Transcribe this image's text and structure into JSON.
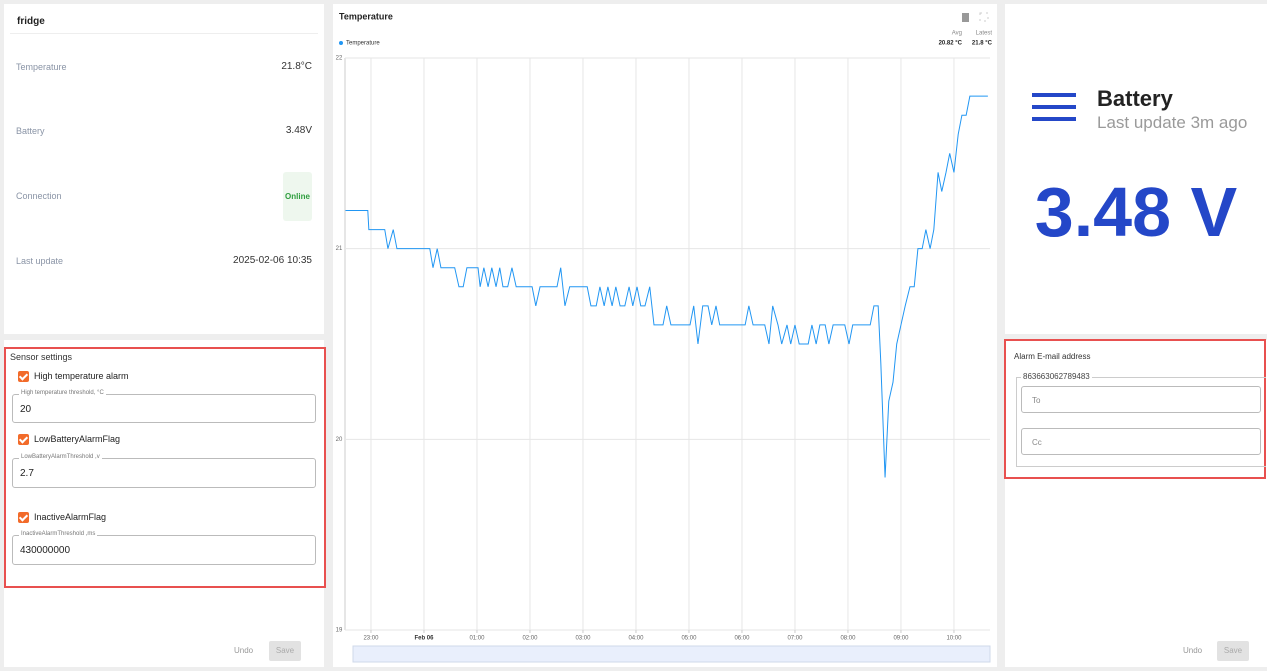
{
  "device_card": {
    "title": "fridge",
    "rows": [
      {
        "label": "Temperature",
        "value": "21.8°C"
      },
      {
        "label": "Battery",
        "value": "3.48V"
      },
      {
        "label": "Connection",
        "value": "Online"
      },
      {
        "label": "Last update",
        "value": "2025-02-06 10:35"
      }
    ]
  },
  "sensor_settings": {
    "title": "Sensor settings",
    "items": [
      {
        "checkbox": "High temperature alarm",
        "field_label": "High temperature threshold, °C",
        "field_value": "20"
      },
      {
        "checkbox": "LowBatteryAlarmFlag",
        "field_label": "LowBatteryAlarmThreshold ,v",
        "field_value": "2.7"
      },
      {
        "checkbox": "InactiveAlarmFlag",
        "field_label": "InactiveAlarmThreshold ,ms",
        "field_value": "430000000"
      }
    ]
  },
  "left_actions": {
    "undo": "Undo",
    "save": "Save"
  },
  "chart_data": {
    "type": "line",
    "title": "Temperature",
    "stats": [
      {
        "label": "Avg",
        "value": "20.82 °C"
      },
      {
        "label": "Latest",
        "value": "21.8 °C"
      }
    ],
    "x": [
      22.52,
      22.94,
      22.96,
      23.26,
      23.32,
      23.42,
      23.49,
      24.11,
      24.17,
      24.25,
      24.32,
      24.58,
      24.66,
      24.74,
      24.81,
      25.02,
      25.06,
      25.13,
      25.21,
      25.28,
      25.36,
      25.43,
      25.49,
      25.58,
      25.66,
      25.74,
      26.04,
      26.11,
      26.19,
      26.51,
      26.58,
      26.66,
      26.75,
      27.08,
      27.15,
      27.25,
      27.32,
      27.4,
      27.47,
      27.55,
      27.62,
      27.7,
      27.79,
      27.87,
      27.94,
      28.02,
      28.09,
      28.17,
      28.26,
      28.34,
      28.51,
      28.58,
      28.66,
      29.02,
      29.09,
      29.17,
      29.26,
      29.36,
      29.43,
      29.51,
      29.58,
      30.06,
      30.13,
      30.21,
      30.43,
      30.51,
      30.58,
      30.68,
      30.75,
      30.85,
      30.92,
      31.0,
      31.08,
      31.25,
      31.32,
      31.4,
      31.47,
      31.57,
      31.64,
      31.72,
      31.94,
      32.02,
      32.09,
      32.42,
      32.49,
      32.57,
      32.62,
      32.7,
      32.77,
      32.85,
      32.92,
      33.0,
      33.08,
      33.17,
      33.25,
      33.32,
      33.4,
      33.47,
      33.55,
      33.62,
      33.7,
      33.77,
      33.85,
      33.92,
      34.0,
      34.08,
      34.15,
      34.23,
      34.3,
      34.64
    ],
    "series": [
      {
        "name": "Temperature",
        "color": "#2196f3",
        "values": [
          21.2,
          21.2,
          21.1,
          21.1,
          21.0,
          21.1,
          21.0,
          21.0,
          20.9,
          21.0,
          20.9,
          20.9,
          20.8,
          20.8,
          20.9,
          20.9,
          20.8,
          20.9,
          20.8,
          20.9,
          20.8,
          20.9,
          20.8,
          20.8,
          20.9,
          20.8,
          20.8,
          20.7,
          20.8,
          20.8,
          20.9,
          20.7,
          20.8,
          20.8,
          20.7,
          20.7,
          20.8,
          20.7,
          20.8,
          20.7,
          20.8,
          20.7,
          20.7,
          20.8,
          20.7,
          20.8,
          20.7,
          20.7,
          20.8,
          20.6,
          20.6,
          20.7,
          20.6,
          20.6,
          20.7,
          20.5,
          20.7,
          20.7,
          20.6,
          20.7,
          20.6,
          20.6,
          20.7,
          20.6,
          20.6,
          20.5,
          20.7,
          20.6,
          20.5,
          20.6,
          20.5,
          20.6,
          20.5,
          20.5,
          20.6,
          20.5,
          20.6,
          20.6,
          20.5,
          20.6,
          20.6,
          20.5,
          20.6,
          20.6,
          20.7,
          20.7,
          20.4,
          19.8,
          20.2,
          20.3,
          20.5,
          20.6,
          20.7,
          20.8,
          20.8,
          21.0,
          21.0,
          21.1,
          21.0,
          21.1,
          21.4,
          21.3,
          21.4,
          21.5,
          21.4,
          21.6,
          21.7,
          21.7,
          21.8,
          21.8
        ]
      }
    ],
    "xlim": [
      22.51,
      34.68
    ],
    "xticks": [
      {
        "value": 23,
        "label": "23:00"
      },
      {
        "value": 24,
        "label": "Feb 06"
      },
      {
        "value": 25,
        "label": "01:00"
      },
      {
        "value": 26,
        "label": "02:00"
      },
      {
        "value": 27,
        "label": "03:00"
      },
      {
        "value": 28,
        "label": "04:00"
      },
      {
        "value": 29,
        "label": "05:00"
      },
      {
        "value": 30,
        "label": "06:00"
      },
      {
        "value": 31,
        "label": "07:00"
      },
      {
        "value": 32,
        "label": "08:00"
      },
      {
        "value": 33,
        "label": "09:00"
      },
      {
        "value": 34,
        "label": "10:00"
      }
    ],
    "ylim": [
      19,
      22
    ],
    "yticks": [
      19,
      20,
      21,
      22
    ],
    "grid": true
  },
  "battery_card": {
    "title": "Battery",
    "subtitle": "Last update 3m ago",
    "value": "3.48 V"
  },
  "alarm_email": {
    "title": "Alarm E-mail address",
    "group": "863663062789483",
    "to": "To",
    "cc": "Cc"
  },
  "right_actions": {
    "undo": "Undo",
    "save": "Save"
  }
}
